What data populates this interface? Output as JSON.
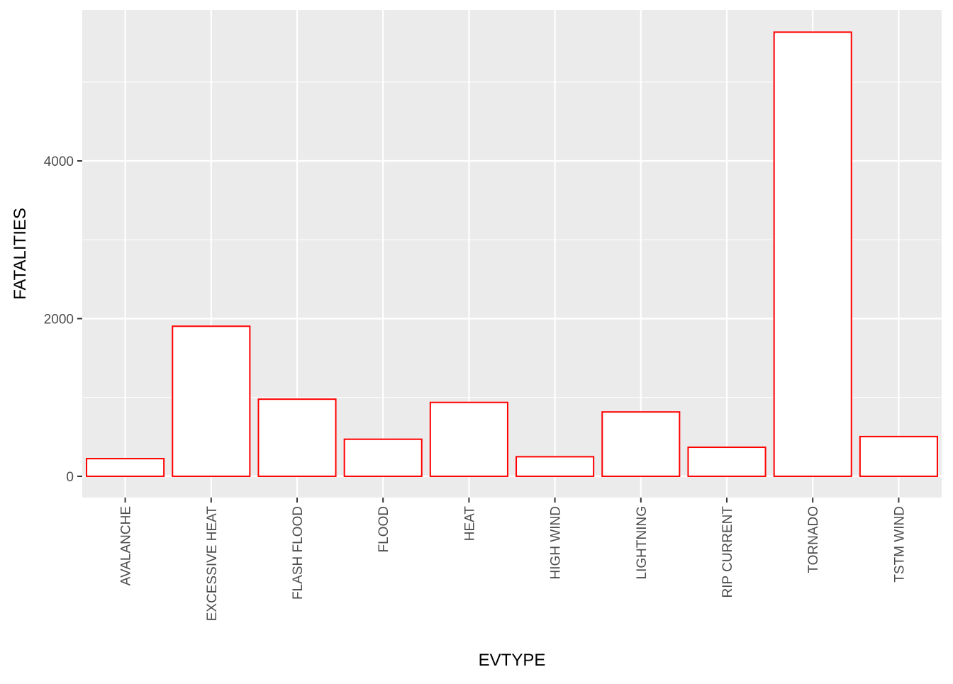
{
  "chart_data": {
    "type": "bar",
    "xlabel": "EVTYPE",
    "ylabel": "FATALITIES",
    "categories": [
      "AVALANCHE",
      "EXCESSIVE HEAT",
      "FLASH FLOOD",
      "FLOOD",
      "HEAT",
      "HIGH WIND",
      "LIGHTNING",
      "RIP CURRENT",
      "TORNADO",
      "TSTM WIND"
    ],
    "values": [
      224,
      1903,
      978,
      470,
      937,
      248,
      816,
      368,
      5633,
      504
    ],
    "ylim": [
      -270,
      5915
    ],
    "y_ticks": [
      0,
      2000,
      4000
    ],
    "y_tick_labels": [
      "0",
      "2000",
      "4000"
    ],
    "grid": true,
    "legend": "none",
    "colors": {
      "panel_background": "#ebebeb",
      "grid": "#ffffff",
      "bar_fill": "#ffffff",
      "bar_outline": "#ff0000",
      "tick_text": "#4d4d4d",
      "title_text": "#000000"
    }
  }
}
